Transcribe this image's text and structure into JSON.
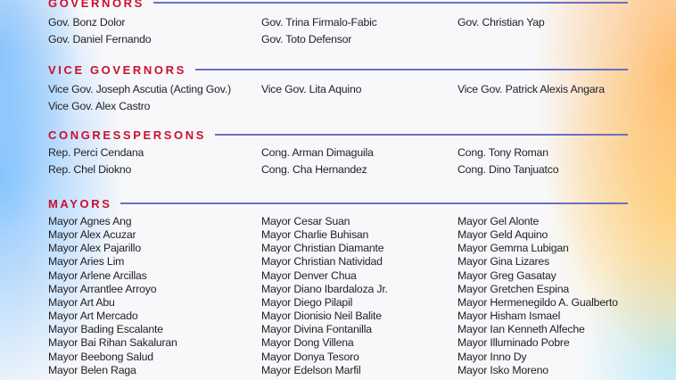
{
  "colors": {
    "heading": "#c8102e",
    "rule": "#6b6fc4",
    "text": "#1e1e24"
  },
  "sections": [
    {
      "title": "GOVERNORS",
      "columns": [
        [
          "Gov. Bonz Dolor",
          "Gov. Daniel Fernando"
        ],
        [
          "Gov. Trina Firmalo-Fabic",
          "Gov. Toto Defensor"
        ],
        [
          "Gov. Christian Yap"
        ]
      ]
    },
    {
      "title": "VICE GOVERNORS",
      "columns": [
        [
          "Vice Gov. Joseph Ascutia (Acting Gov.)",
          "Vice Gov. Alex Castro"
        ],
        [
          "Vice Gov. Lita Aquino"
        ],
        [
          "Vice Gov. Patrick Alexis Angara"
        ]
      ]
    },
    {
      "title": "CONGRESSPERSONS",
      "columns": [
        [
          "Rep. Perci Cendana",
          "Rep. Chel Diokno"
        ],
        [
          "Cong. Arman Dimaguila",
          "Cong. Cha Hernandez"
        ],
        [
          "Cong. Tony Roman",
          "Cong. Dino Tanjuatco"
        ]
      ]
    },
    {
      "title": "MAYORS",
      "columns": [
        [
          "Mayor Agnes Ang",
          "Mayor Alex Acuzar",
          "Mayor Alex Pajarillo",
          "Mayor Aries Lim",
          "Mayor Arlene Arcillas",
          "Mayor Arrantlee Arroyo",
          "Mayor Art Abu",
          "Mayor Art Mercado",
          "Mayor Bading Escalante",
          "Mayor Bai Rihan Sakaluran",
          "Mayor Beebong Salud",
          "Mayor Belen Raga"
        ],
        [
          "Mayor Cesar Suan",
          "Mayor Charlie Buhisan",
          "Mayor Christian Diamante",
          "Mayor Christian Natividad",
          "Mayor Denver Chua",
          "Mayor Diano Ibardaloza Jr.",
          "Mayor Diego Pilapil",
          "Mayor Dionisio Neil Balite",
          "Mayor Divina Fontanilla",
          "Mayor Dong Villena",
          "Mayor Donya Tesoro",
          "Mayor Edelson Marfil"
        ],
        [
          "Mayor Gel Alonte",
          "Mayor Geld Aquino",
          "Mayor Gemma Lubigan",
          "Mayor Gina Lizares",
          "Mayor Greg Gasatay",
          "Mayor Gretchen Espina",
          "Mayor Hermenegildo A. Gualberto",
          "Mayor Hisham Ismael",
          "Mayor Ian Kenneth Alfeche",
          "Mayor Illuminado Pobre",
          "Mayor Inno Dy",
          "Mayor Isko Moreno"
        ]
      ]
    }
  ]
}
